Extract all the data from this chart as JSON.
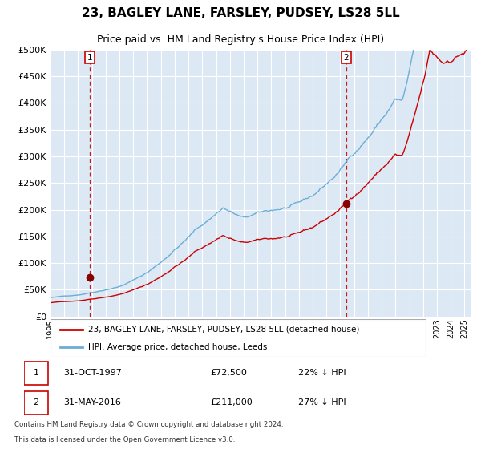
{
  "title": "23, BAGLEY LANE, FARSLEY, PUDSEY, LS28 5LL",
  "subtitle": "Price paid vs. HM Land Registry's House Price Index (HPI)",
  "legend_line1": "23, BAGLEY LANE, FARSLEY, PUDSEY, LS28 5LL (detached house)",
  "legend_line2": "HPI: Average price, detached house, Leeds",
  "annotation1_date": "31-OCT-1997",
  "annotation1_price": "£72,500",
  "annotation1_hpi": "22% ↓ HPI",
  "annotation2_date": "31-MAY-2016",
  "annotation2_price": "£211,000",
  "annotation2_hpi": "27% ↓ HPI",
  "footnote1": "Contains HM Land Registry data © Crown copyright and database right 2024.",
  "footnote2": "This data is licensed under the Open Government Licence v3.0.",
  "sale1_year": 1997.83,
  "sale1_price": 72500,
  "sale2_year": 2016.42,
  "sale2_price": 211000,
  "ylim": [
    0,
    500000
  ],
  "yticks": [
    0,
    50000,
    100000,
    150000,
    200000,
    250000,
    300000,
    350000,
    400000,
    450000,
    500000
  ],
  "hpi_color": "#6baed6",
  "price_color": "#cc0000",
  "bg_color": "#dce9f5",
  "grid_color": "#ffffff",
  "vline_color": "#cc0000",
  "dot_color": "#880000",
  "title_fontsize": 11,
  "subtitle_fontsize": 9
}
